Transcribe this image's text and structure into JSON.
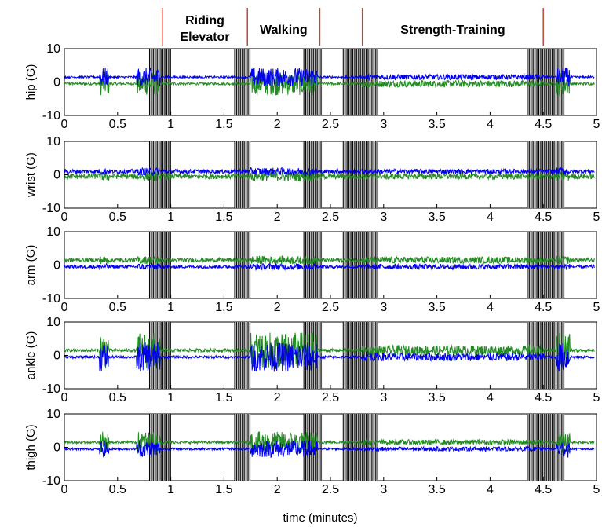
{
  "chart_data": {
    "type": "line",
    "x_label": "time (minutes)",
    "x_range": [
      0,
      5
    ],
    "x_ticks": [
      "0",
      "0.5",
      "1",
      "1.5",
      "2",
      "2.5",
      "3",
      "3.5",
      "4",
      "4.5",
      "5"
    ],
    "y_range": [
      -10,
      10
    ],
    "y_ticks": [
      "-10",
      "0",
      "10"
    ],
    "series_colors": {
      "primary": "#0000ee",
      "secondary": "#228b22"
    },
    "panels": [
      {
        "ylabel": "hip (G)"
      },
      {
        "ylabel": "wrist (G)"
      },
      {
        "ylabel": "arm (G)"
      },
      {
        "ylabel": "ankle (G)"
      },
      {
        "ylabel": "thigh (G)"
      }
    ],
    "activities": [
      {
        "label_lines": [
          "Riding",
          "Elevator"
        ],
        "start": 0.92,
        "end": 1.72
      },
      {
        "label_lines": [
          "Walking"
        ],
        "start": 1.72,
        "end": 2.4
      },
      {
        "label_lines": [
          "Strength-Training"
        ],
        "start": 2.8,
        "end": 4.5
      }
    ],
    "boundary_lines_min": [
      0.92,
      1.72,
      2.4,
      2.8,
      4.5
    ],
    "transition_bands_min": [
      [
        0.8,
        1.0
      ],
      [
        1.6,
        1.75
      ],
      [
        2.25,
        2.42
      ],
      [
        2.62,
        2.95
      ],
      [
        4.35,
        4.7
      ]
    ]
  }
}
